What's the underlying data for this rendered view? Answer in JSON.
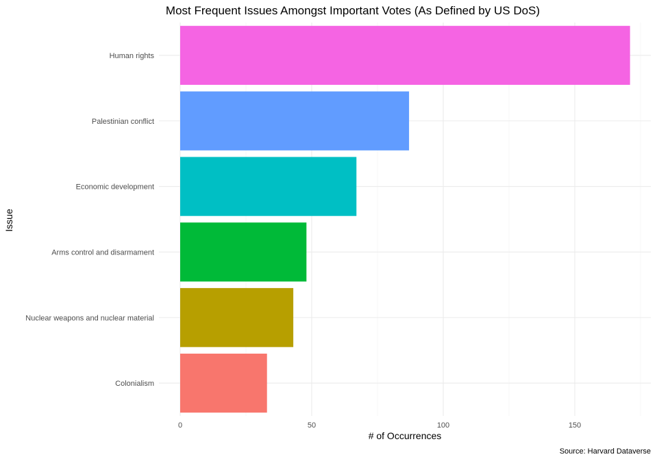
{
  "chart_data": {
    "type": "bar",
    "orientation": "horizontal",
    "title": "Most Frequent Issues Amongst Important Votes (As Defined by US DoS)",
    "xlabel": "# of Occurrences",
    "ylabel": "Issue",
    "caption": "Source: Harvard Dataverse",
    "categories": [
      "Colonialism",
      "Nuclear weapons and nuclear material",
      "Arms control and disarmament",
      "Economic development",
      "Palestinian conflict",
      "Human rights"
    ],
    "values": [
      33,
      43,
      48,
      67,
      87,
      171
    ],
    "colors": [
      "#F8766D",
      "#B79F00",
      "#00BA38",
      "#00BFC4",
      "#619CFF",
      "#F564E3"
    ],
    "xlim": [
      0,
      180
    ],
    "xticks": [
      0,
      50,
      100,
      150
    ],
    "xtick_labels": [
      "0",
      "50",
      "100",
      "150"
    ],
    "grid": true,
    "legend": "none"
  }
}
